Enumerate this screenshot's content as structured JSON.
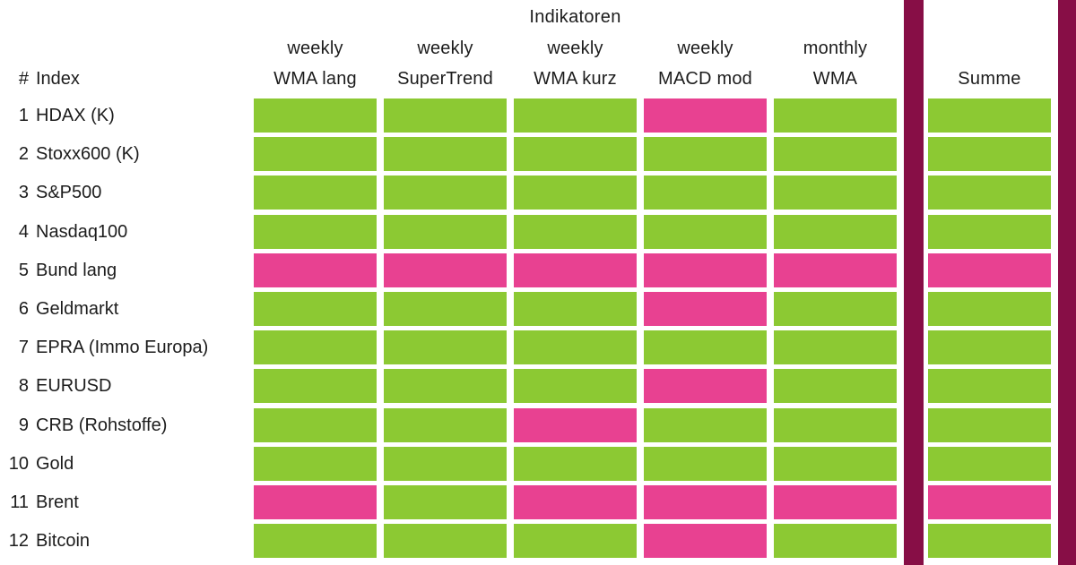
{
  "title": "Indikatoren",
  "corner": {
    "hash": "#",
    "index_label": "Index"
  },
  "summe_label": "Summe",
  "columns": [
    {
      "period": "weekly",
      "name": "WMA lang"
    },
    {
      "period": "weekly",
      "name": "SuperTrend"
    },
    {
      "period": "weekly",
      "name": "WMA kurz"
    },
    {
      "period": "weekly",
      "name": "MACD mod"
    },
    {
      "period": "monthly",
      "name": "WMA"
    }
  ],
  "rows": [
    {
      "num": "1",
      "label": "HDAX (K)",
      "signals": [
        "green",
        "green",
        "green",
        "pink",
        "green"
      ],
      "summe": "green"
    },
    {
      "num": "2",
      "label": "Stoxx600 (K)",
      "signals": [
        "green",
        "green",
        "green",
        "green",
        "green"
      ],
      "summe": "green"
    },
    {
      "num": "3",
      "label": "S&P500",
      "signals": [
        "green",
        "green",
        "green",
        "green",
        "green"
      ],
      "summe": "green"
    },
    {
      "num": "4",
      "label": "Nasdaq100",
      "signals": [
        "green",
        "green",
        "green",
        "green",
        "green"
      ],
      "summe": "green"
    },
    {
      "num": "5",
      "label": "Bund lang",
      "signals": [
        "pink",
        "pink",
        "pink",
        "pink",
        "pink"
      ],
      "summe": "pink"
    },
    {
      "num": "6",
      "label": "Geldmarkt",
      "signals": [
        "green",
        "green",
        "green",
        "pink",
        "green"
      ],
      "summe": "green"
    },
    {
      "num": "7",
      "label": "EPRA (Immo Europa)",
      "signals": [
        "green",
        "green",
        "green",
        "green",
        "green"
      ],
      "summe": "green"
    },
    {
      "num": "8",
      "label": "EURUSD",
      "signals": [
        "green",
        "green",
        "green",
        "pink",
        "green"
      ],
      "summe": "green"
    },
    {
      "num": "9",
      "label": "CRB (Rohstoffe)",
      "signals": [
        "green",
        "green",
        "pink",
        "green",
        "green"
      ],
      "summe": "green"
    },
    {
      "num": "10",
      "label": "Gold",
      "signals": [
        "green",
        "green",
        "green",
        "green",
        "green"
      ],
      "summe": "green"
    },
    {
      "num": "11",
      "label": "Brent",
      "signals": [
        "pink",
        "green",
        "pink",
        "pink",
        "pink"
      ],
      "summe": "pink"
    },
    {
      "num": "12",
      "label": "Bitcoin",
      "signals": [
        "green",
        "green",
        "green",
        "pink",
        "green"
      ],
      "summe": "green"
    }
  ],
  "colors": {
    "green": "#8CC933",
    "pink": "#E84191",
    "separator": "#870E46"
  },
  "chart_data": {
    "type": "heatmap",
    "title": "Indikatoren",
    "columns": [
      "weekly WMA lang",
      "weekly SuperTrend",
      "weekly WMA kurz",
      "weekly MACD mod",
      "monthly WMA",
      "Summe"
    ],
    "rows": [
      "HDAX (K)",
      "Stoxx600 (K)",
      "S&P500",
      "Nasdaq100",
      "Bund lang",
      "Geldmarkt",
      "EPRA (Immo Europa)",
      "EURUSD",
      "CRB (Rohstoffe)",
      "Gold",
      "Brent",
      "Bitcoin"
    ],
    "cells": [
      [
        "green",
        "green",
        "green",
        "pink",
        "green",
        "green"
      ],
      [
        "green",
        "green",
        "green",
        "green",
        "green",
        "green"
      ],
      [
        "green",
        "green",
        "green",
        "green",
        "green",
        "green"
      ],
      [
        "green",
        "green",
        "green",
        "green",
        "green",
        "green"
      ],
      [
        "pink",
        "pink",
        "pink",
        "pink",
        "pink",
        "pink"
      ],
      [
        "green",
        "green",
        "green",
        "pink",
        "green",
        "green"
      ],
      [
        "green",
        "green",
        "green",
        "green",
        "green",
        "green"
      ],
      [
        "green",
        "green",
        "green",
        "pink",
        "green",
        "green"
      ],
      [
        "green",
        "green",
        "pink",
        "green",
        "green",
        "green"
      ],
      [
        "green",
        "green",
        "green",
        "green",
        "green",
        "green"
      ],
      [
        "pink",
        "green",
        "pink",
        "pink",
        "pink",
        "pink"
      ],
      [
        "green",
        "green",
        "green",
        "pink",
        "green",
        "green"
      ]
    ],
    "legend": {
      "green": "#8CC933",
      "pink": "#E84191"
    },
    "layout": "12 index rows x 5 indicator columns plus Summe column separated by dark maroon vertical bars"
  }
}
